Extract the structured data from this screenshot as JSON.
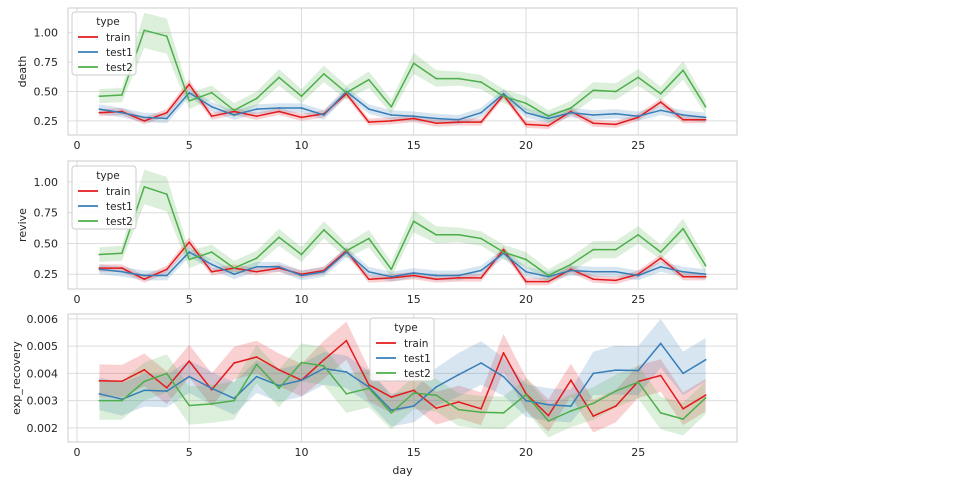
{
  "chart_data": [
    {
      "type": "line",
      "title": "",
      "xlabel": "",
      "ylabel": "death",
      "xlim": [
        -0.4,
        29.4
      ],
      "ylim": [
        0.13,
        1.21
      ],
      "xticks": [
        0,
        5,
        10,
        15,
        20,
        25
      ],
      "xtick_labels": [
        "0",
        "5",
        "10",
        "15",
        "20",
        "25"
      ],
      "yticks": [
        0.25,
        0.5,
        0.75,
        1.0
      ],
      "ytick_labels": [
        "0.25",
        "0.50",
        "0.75",
        "1.00"
      ],
      "legend": {
        "title": "type",
        "position": "top-left",
        "entries": [
          "train",
          "test1",
          "test2"
        ]
      },
      "x": [
        1,
        2,
        3,
        4,
        5,
        6,
        7,
        8,
        9,
        10,
        11,
        12,
        13,
        14,
        15,
        16,
        17,
        18,
        19,
        20,
        21,
        22,
        23,
        24,
        25,
        26,
        27,
        28
      ],
      "series": [
        {
          "name": "train",
          "color": "#e41a1c",
          "values": [
            0.32,
            0.33,
            0.25,
            0.32,
            0.56,
            0.29,
            0.33,
            0.29,
            0.33,
            0.28,
            0.31,
            0.48,
            0.24,
            0.25,
            0.27,
            0.23,
            0.24,
            0.24,
            0.47,
            0.22,
            0.21,
            0.33,
            0.23,
            0.22,
            0.28,
            0.41,
            0.26,
            0.26
          ],
          "band": [
            0.03,
            0.03,
            0.03,
            0.03,
            0.04,
            0.03,
            0.03,
            0.03,
            0.03,
            0.03,
            0.03,
            0.03,
            0.03,
            0.03,
            0.03,
            0.03,
            0.03,
            0.03,
            0.03,
            0.03,
            0.03,
            0.03,
            0.03,
            0.03,
            0.03,
            0.03,
            0.03,
            0.03
          ]
        },
        {
          "name": "test1",
          "color": "#377eb8",
          "values": [
            0.35,
            0.32,
            0.28,
            0.27,
            0.49,
            0.37,
            0.3,
            0.35,
            0.36,
            0.36,
            0.3,
            0.5,
            0.35,
            0.3,
            0.29,
            0.27,
            0.26,
            0.32,
            0.48,
            0.32,
            0.27,
            0.32,
            0.3,
            0.31,
            0.29,
            0.34,
            0.3,
            0.28
          ],
          "band": [
            0.04,
            0.04,
            0.04,
            0.04,
            0.04,
            0.04,
            0.04,
            0.04,
            0.04,
            0.04,
            0.04,
            0.04,
            0.04,
            0.04,
            0.04,
            0.04,
            0.04,
            0.04,
            0.04,
            0.04,
            0.04,
            0.04,
            0.04,
            0.04,
            0.04,
            0.04,
            0.04,
            0.04
          ]
        },
        {
          "name": "test2",
          "color": "#4daf4a",
          "values": [
            0.46,
            0.47,
            1.02,
            0.97,
            0.42,
            0.49,
            0.34,
            0.44,
            0.62,
            0.46,
            0.65,
            0.49,
            0.6,
            0.37,
            0.74,
            0.61,
            0.61,
            0.58,
            0.46,
            0.4,
            0.29,
            0.36,
            0.51,
            0.5,
            0.62,
            0.48,
            0.68,
            0.37
          ],
          "band": [
            0.06,
            0.06,
            0.15,
            0.15,
            0.07,
            0.06,
            0.06,
            0.06,
            0.07,
            0.06,
            0.07,
            0.06,
            0.07,
            0.06,
            0.09,
            0.07,
            0.06,
            0.06,
            0.06,
            0.06,
            0.05,
            0.06,
            0.07,
            0.07,
            0.07,
            0.06,
            0.08,
            0.06
          ]
        }
      ]
    },
    {
      "type": "line",
      "title": "",
      "xlabel": "",
      "ylabel": "revive",
      "xlim": [
        -0.4,
        29.4
      ],
      "ylim": [
        0.13,
        1.17
      ],
      "xticks": [
        0,
        5,
        10,
        15,
        20,
        25
      ],
      "xtick_labels": [
        "0",
        "5",
        "10",
        "15",
        "20",
        "25"
      ],
      "yticks": [
        0.25,
        0.5,
        0.75,
        1.0
      ],
      "ytick_labels": [
        "0.25",
        "0.50",
        "0.75",
        "1.00"
      ],
      "legend": {
        "title": "type",
        "position": "top-left",
        "entries": [
          "train",
          "test1",
          "test2"
        ]
      },
      "x": [
        1,
        2,
        3,
        4,
        5,
        6,
        7,
        8,
        9,
        10,
        11,
        12,
        13,
        14,
        15,
        16,
        17,
        18,
        19,
        20,
        21,
        22,
        23,
        24,
        25,
        26,
        27,
        28
      ],
      "series": [
        {
          "name": "train",
          "color": "#e41a1c",
          "values": [
            0.3,
            0.3,
            0.21,
            0.29,
            0.51,
            0.27,
            0.3,
            0.27,
            0.3,
            0.25,
            0.28,
            0.44,
            0.21,
            0.22,
            0.24,
            0.21,
            0.22,
            0.22,
            0.45,
            0.19,
            0.19,
            0.29,
            0.21,
            0.2,
            0.25,
            0.38,
            0.23,
            0.23
          ],
          "band": [
            0.03,
            0.03,
            0.03,
            0.03,
            0.04,
            0.03,
            0.03,
            0.03,
            0.03,
            0.03,
            0.03,
            0.03,
            0.03,
            0.03,
            0.03,
            0.03,
            0.03,
            0.03,
            0.03,
            0.03,
            0.03,
            0.03,
            0.03,
            0.03,
            0.03,
            0.03,
            0.03,
            0.03
          ]
        },
        {
          "name": "test1",
          "color": "#377eb8",
          "values": [
            0.29,
            0.27,
            0.24,
            0.24,
            0.43,
            0.33,
            0.25,
            0.31,
            0.31,
            0.24,
            0.27,
            0.43,
            0.27,
            0.23,
            0.26,
            0.24,
            0.24,
            0.28,
            0.42,
            0.27,
            0.23,
            0.28,
            0.27,
            0.27,
            0.24,
            0.31,
            0.27,
            0.25
          ],
          "band": [
            0.04,
            0.04,
            0.04,
            0.04,
            0.04,
            0.04,
            0.04,
            0.04,
            0.04,
            0.04,
            0.04,
            0.04,
            0.04,
            0.04,
            0.04,
            0.04,
            0.04,
            0.04,
            0.04,
            0.04,
            0.04,
            0.04,
            0.04,
            0.04,
            0.04,
            0.04,
            0.04,
            0.04
          ]
        },
        {
          "name": "test2",
          "color": "#4daf4a",
          "values": [
            0.41,
            0.42,
            0.96,
            0.9,
            0.37,
            0.43,
            0.3,
            0.38,
            0.55,
            0.41,
            0.61,
            0.44,
            0.54,
            0.29,
            0.68,
            0.57,
            0.57,
            0.54,
            0.43,
            0.37,
            0.24,
            0.33,
            0.45,
            0.45,
            0.57,
            0.43,
            0.62,
            0.32
          ],
          "band": [
            0.06,
            0.06,
            0.14,
            0.14,
            0.07,
            0.06,
            0.06,
            0.06,
            0.07,
            0.06,
            0.07,
            0.06,
            0.07,
            0.06,
            0.09,
            0.07,
            0.06,
            0.06,
            0.06,
            0.06,
            0.05,
            0.06,
            0.07,
            0.07,
            0.07,
            0.06,
            0.08,
            0.06
          ]
        }
      ]
    },
    {
      "type": "line",
      "title": "",
      "xlabel": "day",
      "ylabel": "exp_recovery",
      "xlim": [
        -0.4,
        29.4
      ],
      "ylim": [
        0.00148,
        0.00618
      ],
      "xticks": [
        0,
        5,
        10,
        15,
        20,
        25
      ],
      "xtick_labels": [
        "0",
        "5",
        "10",
        "15",
        "20",
        "25"
      ],
      "yticks": [
        0.002,
        0.003,
        0.004,
        0.005,
        0.006
      ],
      "ytick_labels": [
        "0.002",
        "0.003",
        "0.004",
        "0.005",
        "0.006"
      ],
      "legend": {
        "title": "type",
        "position": "top-center",
        "entries": [
          "train",
          "test1",
          "test2"
        ]
      },
      "x": [
        1,
        2,
        3,
        4,
        5,
        6,
        7,
        8,
        9,
        10,
        11,
        12,
        13,
        14,
        15,
        16,
        17,
        18,
        19,
        20,
        21,
        22,
        23,
        24,
        25,
        26,
        27,
        28
      ],
      "series": [
        {
          "name": "train",
          "color": "#e41a1c",
          "values": [
            0.00373,
            0.00371,
            0.00413,
            0.00347,
            0.00445,
            0.0034,
            0.00438,
            0.0046,
            0.00413,
            0.00375,
            0.0045,
            0.0052,
            0.00358,
            0.00313,
            0.00338,
            0.00272,
            0.00295,
            0.0027,
            0.00475,
            0.00325,
            0.00245,
            0.00375,
            0.00243,
            0.0028,
            0.0037,
            0.00392,
            0.0027,
            0.0032
          ],
          "band": [
            0.0006,
            0.0006,
            0.0006,
            0.0006,
            0.0006,
            0.0006,
            0.0006,
            0.0006,
            0.0006,
            0.0006,
            0.0007,
            0.0007,
            0.0006,
            0.0006,
            0.0006,
            0.0006,
            0.0006,
            0.0006,
            0.0007,
            0.0006,
            0.0006,
            0.0006,
            0.0006,
            0.0006,
            0.0006,
            0.0006,
            0.0006,
            0.0006
          ]
        },
        {
          "name": "test1",
          "color": "#377eb8",
          "values": [
            0.00325,
            0.00305,
            0.00338,
            0.00335,
            0.00388,
            0.00345,
            0.00308,
            0.00388,
            0.00355,
            0.00375,
            0.00418,
            0.00405,
            0.0035,
            0.00265,
            0.0028,
            0.0035,
            0.00395,
            0.00438,
            0.00388,
            0.003,
            0.00285,
            0.0028,
            0.004,
            0.00412,
            0.0041,
            0.0051,
            0.004,
            0.0045
          ],
          "band": [
            0.0006,
            0.0006,
            0.0006,
            0.0006,
            0.0006,
            0.0006,
            0.0006,
            0.0006,
            0.0006,
            0.0006,
            0.0006,
            0.0006,
            0.0006,
            0.0006,
            0.0006,
            0.0007,
            0.0008,
            0.0008,
            0.0007,
            0.0006,
            0.0006,
            0.0006,
            0.0008,
            0.0009,
            0.0009,
            0.0009,
            0.0008,
            0.0008
          ]
        },
        {
          "name": "test2",
          "color": "#4daf4a",
          "values": [
            0.003,
            0.003,
            0.0037,
            0.004,
            0.00282,
            0.00288,
            0.003,
            0.00433,
            0.00345,
            0.0044,
            0.00427,
            0.00325,
            0.00345,
            0.00255,
            0.00328,
            0.0032,
            0.00267,
            0.00257,
            0.00255,
            0.00322,
            0.00225,
            0.00262,
            0.0029,
            0.00335,
            0.00368,
            0.00255,
            0.00232,
            0.0031
          ],
          "band": [
            0.0007,
            0.0007,
            0.0007,
            0.0007,
            0.0007,
            0.0007,
            0.0007,
            0.0007,
            0.0007,
            0.0007,
            0.0007,
            0.0007,
            0.0007,
            0.0006,
            0.0006,
            0.0006,
            0.0006,
            0.0006,
            0.0006,
            0.0006,
            0.0006,
            0.0006,
            0.0006,
            0.0006,
            0.0006,
            0.0006,
            0.0006,
            0.0006
          ]
        }
      ]
    }
  ]
}
